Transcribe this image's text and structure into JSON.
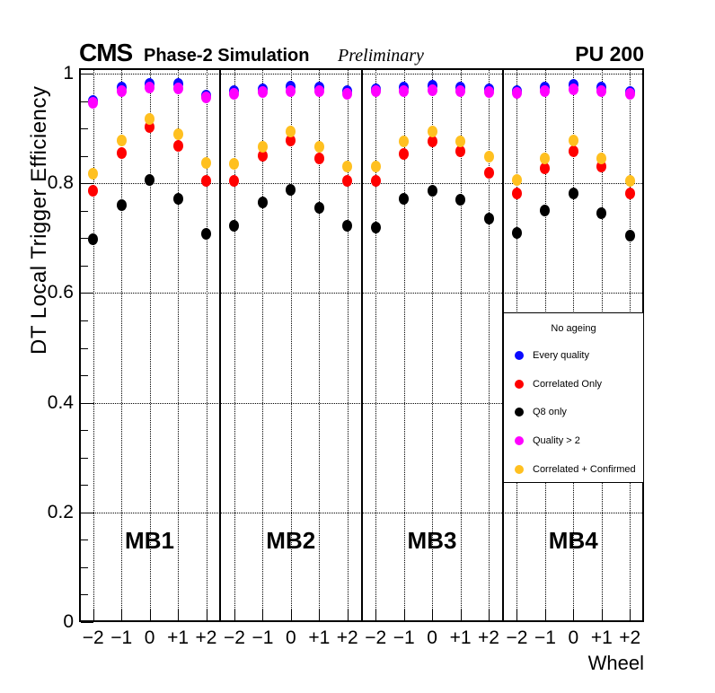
{
  "header": {
    "experiment": "CMS",
    "label": "Phase-2 Simulation",
    "sublabel": "Preliminary",
    "pileup": "PU 200"
  },
  "y_axis": {
    "title": "DT Local Trigger Efficiency",
    "tick_labels": [
      "0",
      "0.2",
      "0.4",
      "0.6",
      "0.8",
      "1"
    ]
  },
  "x_axis": {
    "title": "Wheel",
    "wheel_labels": [
      "−2",
      "−1",
      "0",
      "+1",
      "+2"
    ]
  },
  "stations": [
    "MB1",
    "MB2",
    "MB3",
    "MB4"
  ],
  "legend": {
    "title": "No ageing",
    "entries": [
      {
        "label": "Every quality",
        "color": "#0a0aff"
      },
      {
        "label": "Correlated Only",
        "color": "#ff0000"
      },
      {
        "label": "Q8 only",
        "color": "#000000"
      },
      {
        "label": "Quality > 2",
        "color": "#ff00ff"
      },
      {
        "label": "Correlated + Confirmed",
        "color": "#ffc020"
      }
    ]
  },
  "chart_data": {
    "type": "scatter",
    "title": "CMS Phase-2 Simulation Preliminary, PU 200",
    "xlabel": "Wheel",
    "ylabel": "DT Local Trigger Efficiency",
    "ylim": [
      0,
      1.01
    ],
    "y_major_ticks": [
      0,
      0.2,
      0.4,
      0.6,
      0.8,
      1.0
    ],
    "y_minor_tick_step": 0.05,
    "grid": true,
    "legend_position": "bottom-right",
    "panels": [
      "MB1",
      "MB2",
      "MB3",
      "MB4"
    ],
    "x_categories": [
      "-2",
      "-1",
      "0",
      "+1",
      "+2"
    ],
    "series": [
      {
        "name": "Every quality",
        "color": "#0a0aff",
        "z": 1,
        "values": {
          "MB1": [
            0.951,
            0.974,
            0.982,
            0.981,
            0.96
          ],
          "MB2": [
            0.968,
            0.972,
            0.977,
            0.974,
            0.968
          ],
          "MB3": [
            0.972,
            0.975,
            0.978,
            0.975,
            0.971
          ],
          "MB4": [
            0.969,
            0.975,
            0.979,
            0.975,
            0.967
          ]
        }
      },
      {
        "name": "Correlated Only",
        "color": "#ff0000",
        "z": 2,
        "values": {
          "MB1": [
            0.787,
            0.856,
            0.902,
            0.868,
            0.805
          ],
          "MB2": [
            0.805,
            0.851,
            0.879,
            0.846,
            0.804
          ],
          "MB3": [
            0.804,
            0.854,
            0.877,
            0.859,
            0.82
          ],
          "MB4": [
            0.782,
            0.828,
            0.859,
            0.83,
            0.781
          ]
        }
      },
      {
        "name": "Q8 only",
        "color": "#000000",
        "z": 3,
        "values": {
          "MB1": [
            0.698,
            0.761,
            0.806,
            0.772,
            0.708
          ],
          "MB2": [
            0.723,
            0.766,
            0.789,
            0.756,
            0.722
          ],
          "MB3": [
            0.72,
            0.772,
            0.787,
            0.771,
            0.735
          ],
          "MB4": [
            0.709,
            0.75,
            0.781,
            0.746,
            0.704
          ]
        }
      },
      {
        "name": "Quality > 2",
        "color": "#ff00ff",
        "z": 4,
        "values": {
          "MB1": [
            0.947,
            0.968,
            0.974,
            0.973,
            0.956
          ],
          "MB2": [
            0.964,
            0.966,
            0.969,
            0.968,
            0.964
          ],
          "MB3": [
            0.968,
            0.969,
            0.97,
            0.969,
            0.967
          ],
          "MB4": [
            0.965,
            0.969,
            0.971,
            0.969,
            0.963
          ]
        }
      },
      {
        "name": "Correlated + Confirmed",
        "color": "#ffc020",
        "z": 5,
        "values": {
          "MB1": [
            0.818,
            0.878,
            0.917,
            0.89,
            0.838
          ],
          "MB2": [
            0.835,
            0.867,
            0.894,
            0.867,
            0.83
          ],
          "MB3": [
            0.831,
            0.876,
            0.895,
            0.877,
            0.849
          ],
          "MB4": [
            0.807,
            0.846,
            0.879,
            0.846,
            0.805
          ]
        }
      }
    ]
  }
}
